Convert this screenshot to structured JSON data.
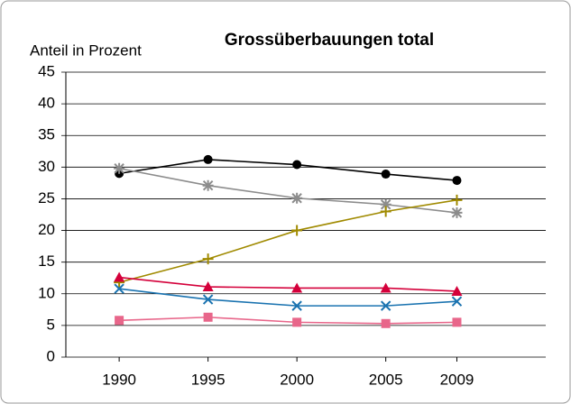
{
  "chart_data": {
    "type": "line",
    "title": "Grossüberbauungen total",
    "y_label": "Anteil in Prozent",
    "x": [
      1990,
      1995,
      2000,
      2005,
      2009
    ],
    "xlim": [
      1987,
      2014
    ],
    "xticks": [
      1990,
      1995,
      2000,
      2005,
      2009
    ],
    "ylim": [
      0,
      45
    ],
    "yticks": [
      0,
      5,
      10,
      15,
      20,
      25,
      30,
      35,
      40,
      45
    ],
    "grid": true,
    "series": [
      {
        "color": "#000000",
        "marker": "circle",
        "values": [
          29,
          31.2,
          30.4,
          28.9,
          27.9
        ]
      },
      {
        "color": "#8c8c8c",
        "marker": "star",
        "values": [
          29.8,
          27.1,
          25.1,
          24.1,
          22.8
        ]
      },
      {
        "color": "#a08a00",
        "marker": "plus",
        "values": [
          11.8,
          15.5,
          20,
          23,
          24.8
        ]
      },
      {
        "color": "#d4003a",
        "marker": "triangle",
        "values": [
          12.6,
          11.1,
          10.9,
          10.9,
          10.4
        ]
      },
      {
        "color": "#1a73b0",
        "marker": "cross",
        "values": [
          10.8,
          9.1,
          8.1,
          8.1,
          8.8
        ]
      },
      {
        "color": "#e8668a",
        "marker": "square",
        "values": [
          5.8,
          6.3,
          5.5,
          5.3,
          5.5
        ]
      }
    ]
  }
}
